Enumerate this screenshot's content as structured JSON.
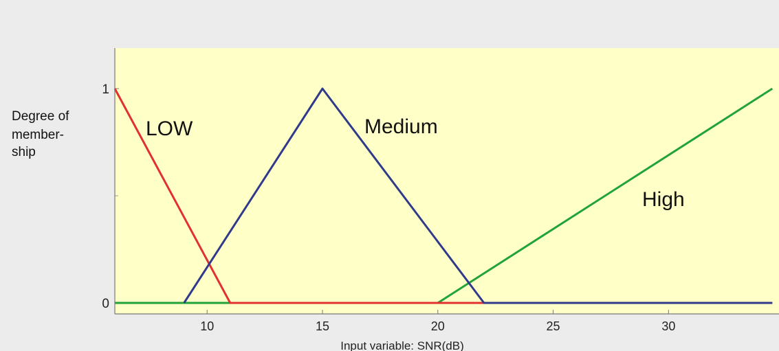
{
  "chart_data": {
    "type": "line",
    "xlabel": "Input variable: SNR(dB)",
    "ylabel_lines": [
      "Degree of",
      "member-",
      "ship"
    ],
    "xlim": [
      6,
      34.5
    ],
    "ylim": [
      0,
      1.1
    ],
    "x_ticks": [
      10,
      15,
      20,
      25,
      30
    ],
    "y_ticks": [
      0,
      1
    ],
    "y_minor_ticks": [
      0.5
    ],
    "grid": false,
    "background": "#ffffc8",
    "series": [
      {
        "name": "LOW",
        "color": "#e03030",
        "x": [
          6,
          11,
          20,
          34.5
        ],
        "y": [
          1,
          0,
          0,
          0
        ]
      },
      {
        "name": "Medium",
        "color": "#303a8a",
        "x": [
          9,
          15,
          22,
          34.5
        ],
        "y": [
          0,
          1,
          0,
          0
        ]
      },
      {
        "name": "High",
        "color": "#22a33a",
        "x": [
          6,
          20,
          34.5
        ],
        "y": [
          0,
          0,
          1
        ]
      }
    ]
  }
}
